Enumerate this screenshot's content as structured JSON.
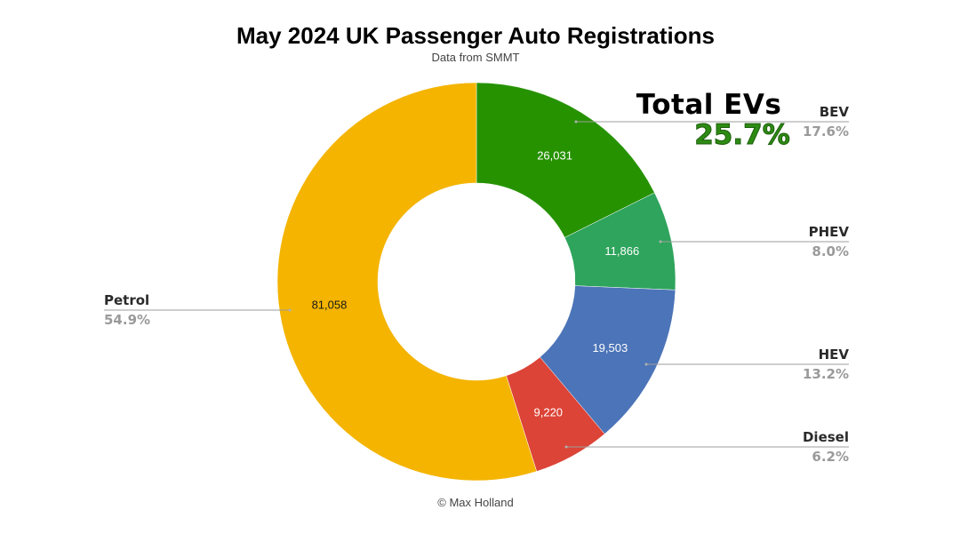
{
  "header": {
    "title": "May 2024 UK Passenger Auto Registrations",
    "subtitle": "Data from SMMT"
  },
  "footer": {
    "credit": "© Max Holland"
  },
  "annotation": {
    "label": "Total EVs",
    "value": "25.7%",
    "color": "#2e8b14"
  },
  "chart_data": {
    "type": "pie",
    "donut": true,
    "title": "May 2024 UK Passenger Auto Registrations",
    "subtitle": "Data from SMMT",
    "slices": [
      {
        "label": "BEV",
        "value": 26031,
        "value_label": "26,031",
        "percent": "17.6%",
        "color": "#269200",
        "text_color": "#ffffff"
      },
      {
        "label": "PHEV",
        "value": 11866,
        "value_label": "11,866",
        "percent": "8.0%",
        "color": "#2ea45c",
        "text_color": "#ffffff"
      },
      {
        "label": "HEV",
        "value": 19503,
        "value_label": "19,503",
        "percent": "13.2%",
        "color": "#4c74b8",
        "text_color": "#ffffff"
      },
      {
        "label": "Diesel",
        "value": 9220,
        "value_label": "9,220",
        "percent": "6.2%",
        "color": "#dc4437",
        "text_color": "#ffffff"
      },
      {
        "label": "Petrol",
        "value": 81058,
        "value_label": "81,058",
        "percent": "54.9%",
        "color": "#f4b400",
        "text_color": "#1a1a1a"
      }
    ],
    "legend_position": "outside labels with leader lines"
  }
}
